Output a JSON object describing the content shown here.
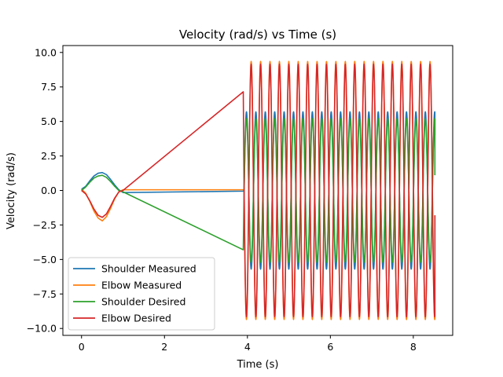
{
  "chart_data": {
    "type": "line",
    "title": "Velocity (rad/s) vs Time (s)",
    "xlabel": "Time (s)",
    "ylabel": "Velocity (rad/s)",
    "xlim": [
      -0.45,
      8.95
    ],
    "ylim": [
      -10.5,
      10.5
    ],
    "xticks": [
      0,
      2,
      4,
      6,
      8
    ],
    "xtick_labels": [
      "0",
      "2",
      "4",
      "6",
      "8"
    ],
    "yticks": [
      -10.0,
      -7.5,
      -5.0,
      -2.5,
      0.0,
      2.5,
      5.0,
      7.5,
      10.0
    ],
    "ytick_labels": [
      "−10.0",
      "−7.5",
      "−5.0",
      "−2.5",
      "0.0",
      "2.5",
      "5.0",
      "7.5",
      "10.0"
    ],
    "grid": false,
    "legend": "lower-left",
    "series": [
      {
        "name": "Shoulder Measured",
        "color": "#1f77b4",
        "segments": [
          {
            "kind": "points",
            "x": [
              0,
              0.1,
              0.2,
              0.3,
              0.4,
              0.5,
              0.6,
              0.7,
              0.8,
              0.9,
              1.0
            ],
            "y": [
              0.1,
              0.3,
              0.7,
              1.05,
              1.25,
              1.3,
              1.15,
              0.8,
              0.4,
              0.05,
              -0.15
            ]
          },
          {
            "kind": "points",
            "x": [
              1.0,
              3.9
            ],
            "y": [
              -0.15,
              -0.05
            ]
          },
          {
            "kind": "oscillation",
            "x_start": 3.92,
            "x_end": 8.52,
            "period": 0.227,
            "amplitude": 5.7,
            "offset": 0.0,
            "phase": 0.0,
            "y_end": 4.0
          }
        ]
      },
      {
        "name": "Elbow Measured",
        "color": "#ff7f0e",
        "segments": [
          {
            "kind": "points",
            "x": [
              0,
              0.1,
              0.2,
              0.3,
              0.4,
              0.5,
              0.6,
              0.7,
              0.8,
              0.9,
              1.0
            ],
            "y": [
              0.1,
              -0.2,
              -0.8,
              -1.5,
              -2.0,
              -2.2,
              -1.9,
              -1.3,
              -0.6,
              -0.1,
              0.05
            ]
          },
          {
            "kind": "points",
            "x": [
              1.0,
              3.9
            ],
            "y": [
              0.05,
              0.05
            ]
          },
          {
            "kind": "oscillation",
            "x_start": 3.92,
            "x_end": 8.52,
            "period": 0.227,
            "amplitude": 9.35,
            "offset": 0.0,
            "phase": 3.14159,
            "y_end": -1.8
          }
        ]
      },
      {
        "name": "Shoulder Desired",
        "color": "#2ca02c",
        "segments": [
          {
            "kind": "points",
            "x": [
              0,
              0.1,
              0.2,
              0.3,
              0.4,
              0.5,
              0.6,
              0.7,
              0.8,
              0.9,
              1.0
            ],
            "y": [
              0.0,
              0.25,
              0.6,
              0.9,
              1.05,
              1.1,
              0.95,
              0.65,
              0.3,
              0.0,
              -0.1
            ]
          },
          {
            "kind": "points",
            "x": [
              1.0,
              3.9
            ],
            "y": [
              -0.1,
              -4.3
            ]
          },
          {
            "kind": "oscillation",
            "x_start": 3.92,
            "x_end": 8.52,
            "period": 0.227,
            "amplitude": 5.2,
            "offset": 0.0,
            "phase": 0.0,
            "y_end": 1.1
          }
        ]
      },
      {
        "name": "Elbow Desired",
        "color": "#d62728",
        "segments": [
          {
            "kind": "points",
            "x": [
              0,
              0.1,
              0.2,
              0.3,
              0.4,
              0.5,
              0.6,
              0.7,
              0.8,
              0.9,
              1.0
            ],
            "y": [
              0.0,
              -0.25,
              -0.75,
              -1.35,
              -1.8,
              -1.95,
              -1.7,
              -1.15,
              -0.55,
              -0.1,
              0.0
            ]
          },
          {
            "kind": "points",
            "x": [
              1.0,
              3.9
            ],
            "y": [
              0.0,
              7.15
            ]
          },
          {
            "kind": "oscillation",
            "x_start": 3.92,
            "x_end": 8.52,
            "period": 0.227,
            "amplitude": 9.15,
            "offset": 0.0,
            "phase": 3.14159,
            "y_end": -1.8
          }
        ]
      }
    ]
  }
}
